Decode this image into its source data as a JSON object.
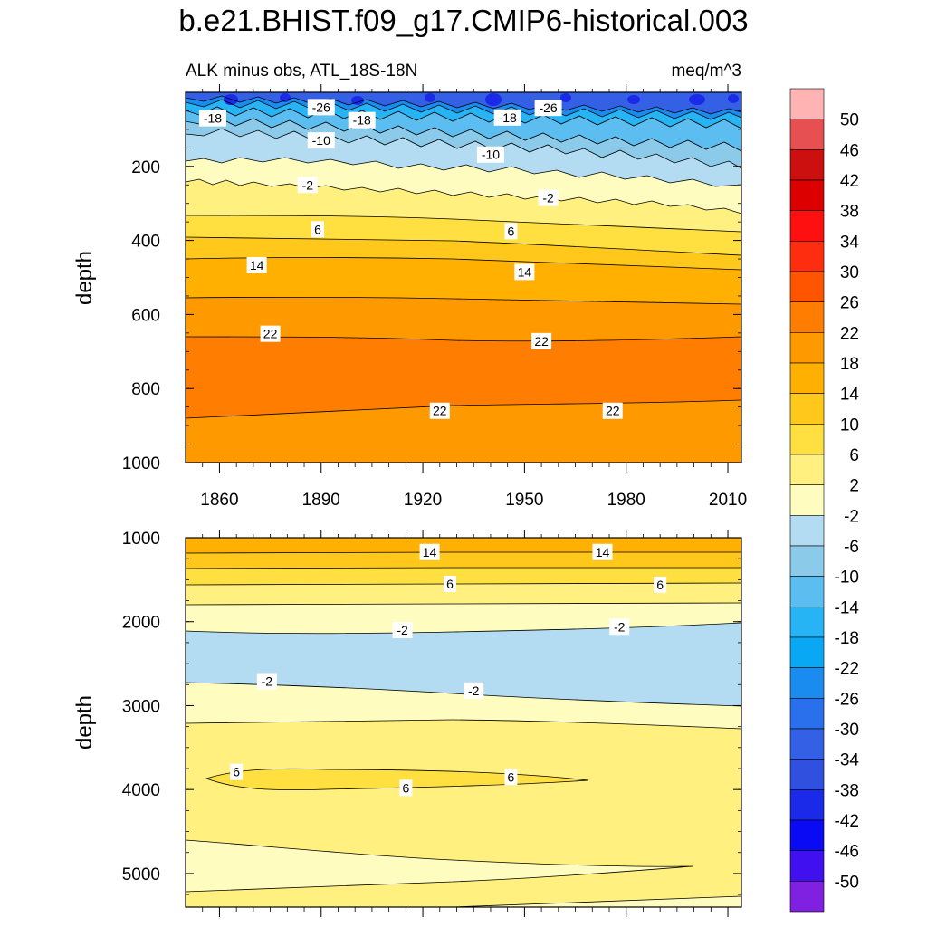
{
  "title": "b.e21.BHIST.f09_g17.CMIP6-historical.003",
  "chart_data": {
    "type": "contour",
    "left_label": "ALK minus obs, ATL_18S-18N",
    "right_label": "meq/m^3",
    "x_ticks": [
      1860,
      1890,
      1920,
      1950,
      1980,
      2010
    ],
    "xlim": [
      1850,
      2014
    ],
    "colorbar": {
      "labels": [
        "50",
        "46",
        "42",
        "38",
        "34",
        "30",
        "26",
        "22",
        "18",
        "14",
        "10",
        "6",
        "2",
        "-2",
        "-6",
        "-10",
        "-14",
        "-18",
        "-22",
        "-26",
        "-30",
        "-34",
        "-38",
        "-42",
        "-46",
        "-50"
      ],
      "colors": [
        "#ffb3b3",
        "#e65050",
        "#cc1010",
        "#dc0000",
        "#ff1010",
        "#ff2d10",
        "#ff5500",
        "#ff7d00",
        "#ff9900",
        "#ffb000",
        "#ffc81a",
        "#ffe040",
        "#fff080",
        "#fffcc0",
        "#b3dcf2",
        "#8ccaea",
        "#5cbdf0",
        "#26b4f5",
        "#08a8f5",
        "#1a8cf0",
        "#2a70ec",
        "#3460e6",
        "#3050df",
        "#1a2ae8",
        "#0a0af5",
        "#4010f0",
        "#8020e0"
      ]
    },
    "panels": [
      {
        "ylabel": "depth",
        "ylim": [
          0,
          1000
        ],
        "y_ticks": [
          200,
          400,
          600,
          800,
          1000
        ],
        "contour_labels": [
          {
            "text": "-26",
            "x": 1890,
            "y": 40
          },
          {
            "text": "-26",
            "x": 1957,
            "y": 42
          },
          {
            "text": "-18",
            "x": 1858,
            "y": 70
          },
          {
            "text": "-18",
            "x": 1902,
            "y": 75
          },
          {
            "text": "-18",
            "x": 1945,
            "y": 68
          },
          {
            "text": "-10",
            "x": 1890,
            "y": 130
          },
          {
            "text": "-10",
            "x": 1940,
            "y": 168
          },
          {
            "text": "-2",
            "x": 1886,
            "y": 250
          },
          {
            "text": "-2",
            "x": 1957,
            "y": 285
          },
          {
            "text": "6",
            "x": 1889,
            "y": 370
          },
          {
            "text": "6",
            "x": 1946,
            "y": 375
          },
          {
            "text": "14",
            "x": 1871,
            "y": 467
          },
          {
            "text": "14",
            "x": 1950,
            "y": 485
          },
          {
            "text": "22",
            "x": 1875,
            "y": 652
          },
          {
            "text": "22",
            "x": 1955,
            "y": 672
          },
          {
            "text": "22",
            "x": 1925,
            "y": 860
          },
          {
            "text": "22",
            "x": 1976,
            "y": 860
          }
        ]
      },
      {
        "ylabel": "depth",
        "ylim": [
          1000,
          5400
        ],
        "y_ticks": [
          1000,
          2000,
          3000,
          4000,
          5000
        ],
        "contour_labels": [
          {
            "text": "14",
            "x": 1922,
            "y": 1170
          },
          {
            "text": "14",
            "x": 1973,
            "y": 1170
          },
          {
            "text": "6",
            "x": 1928,
            "y": 1550
          },
          {
            "text": "6",
            "x": 1990,
            "y": 1560
          },
          {
            "text": "-2",
            "x": 1914,
            "y": 2100
          },
          {
            "text": "-2",
            "x": 1978,
            "y": 2060
          },
          {
            "text": "-2",
            "x": 1874,
            "y": 2710
          },
          {
            "text": "-2",
            "x": 1935,
            "y": 2820
          },
          {
            "text": "6",
            "x": 1865,
            "y": 3790
          },
          {
            "text": "6",
            "x": 1915,
            "y": 3980
          },
          {
            "text": "6",
            "x": 1946,
            "y": 3850
          }
        ]
      }
    ]
  }
}
